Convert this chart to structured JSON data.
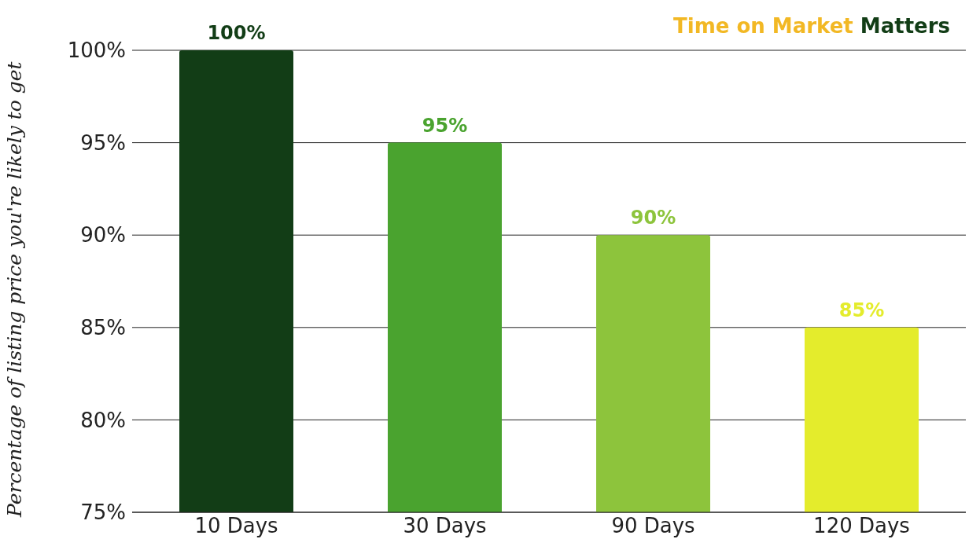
{
  "chart_data": {
    "type": "bar",
    "title": "Time on Market Matters",
    "ylabel": "Percentage of listing price you're likely to get",
    "categories": [
      "10 Days",
      "30 Days",
      "90 Days",
      "120 Days"
    ],
    "values": [
      100,
      95,
      90,
      85
    ],
    "colors": [
      "#123d16",
      "#4aa32f",
      "#8dc43c",
      "#e4ec2c"
    ],
    "value_labels": [
      "100%",
      "95%",
      "90%",
      "85%"
    ],
    "ylim": [
      75,
      100
    ],
    "yticks": [
      {
        "value": 75,
        "label": "75%"
      },
      {
        "value": 80,
        "label": "80%"
      },
      {
        "value": 85,
        "label": "85%"
      },
      {
        "value": 90,
        "label": "90%"
      },
      {
        "value": 95,
        "label": "95%"
      },
      {
        "value": 100,
        "label": "100%"
      }
    ],
    "grid": "y"
  }
}
